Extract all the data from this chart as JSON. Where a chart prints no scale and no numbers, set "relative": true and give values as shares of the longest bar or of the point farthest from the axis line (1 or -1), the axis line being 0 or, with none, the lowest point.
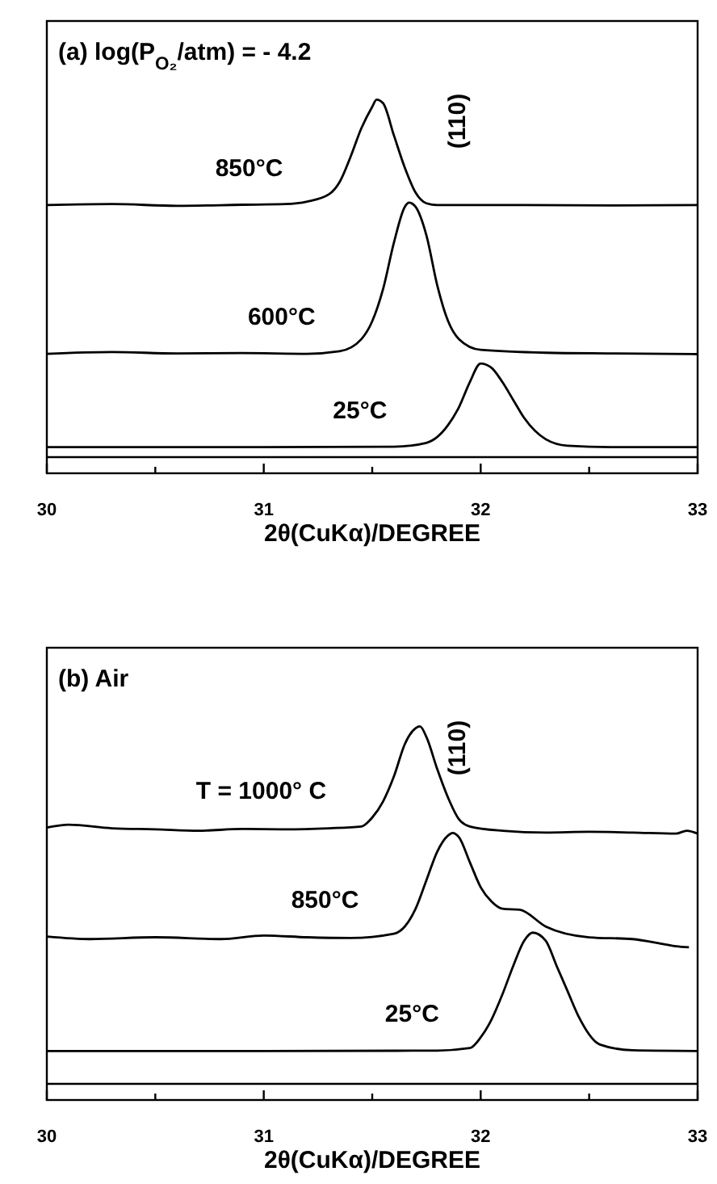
{
  "chart_data": [
    {
      "type": "line",
      "title": "(a) log(P$_{O₂}$/atm) = - 4.2",
      "xlabel": "2θ(CuKα)/DEGREE",
      "relative": true,
      "legend": false,
      "xlim": [
        30,
        33
      ],
      "xticks": [
        30,
        {
          "value": 30.5,
          "label": null
        },
        31,
        {
          "value": 31.5,
          "label": null
        },
        32,
        {
          "value": 32.5,
          "label": null
        },
        33
      ],
      "annotations": [
        "(110)"
      ],
      "series": [
        {
          "name": "850°C",
          "color": "#000000",
          "x": [
            30,
            30.3,
            30.6,
            30.9,
            31.1,
            31.2,
            31.3,
            31.35,
            31.4,
            31.45,
            31.5,
            31.52,
            31.55,
            31.6,
            31.65,
            31.7,
            31.75,
            31.8,
            31.9,
            32.2,
            32.6,
            33
          ],
          "values": [
            0.705,
            0.708,
            0.703,
            0.706,
            0.708,
            0.715,
            0.735,
            0.77,
            0.84,
            0.92,
            0.98,
            1.0,
            0.99,
            0.9,
            0.81,
            0.74,
            0.71,
            0.705,
            0.705,
            0.705,
            0.704,
            0.705
          ]
        },
        {
          "name": "600°C",
          "color": "#000000",
          "x": [
            30,
            30.3,
            30.6,
            30.9,
            31.2,
            31.35,
            31.45,
            31.5,
            31.55,
            31.6,
            31.65,
            31.67,
            31.7,
            31.75,
            31.8,
            31.85,
            31.9,
            32.0,
            32.3,
            32.6,
            33
          ],
          "values": [
            0.289,
            0.294,
            0.29,
            0.291,
            0.289,
            0.296,
            0.33,
            0.38,
            0.47,
            0.6,
            0.7,
            0.712,
            0.7,
            0.62,
            0.48,
            0.38,
            0.33,
            0.3,
            0.292,
            0.29,
            0.288
          ]
        },
        {
          "name": "25°C",
          "color": "#000000",
          "x": [
            30,
            31,
            31.6,
            31.75,
            31.85,
            31.9,
            31.95,
            32.0,
            32.05,
            32.1,
            32.15,
            32.2,
            32.3,
            32.4,
            32.6,
            33
          ],
          "values": [
            0.028,
            0.028,
            0.029,
            0.04,
            0.09,
            0.14,
            0.21,
            0.262,
            0.25,
            0.21,
            0.16,
            0.11,
            0.05,
            0.032,
            0.028,
            0.028
          ]
        }
      ]
    },
    {
      "type": "line",
      "title": "(b) Air",
      "xlabel": "2θ(CuKα)/DEGREE",
      "relative": true,
      "legend": false,
      "xlim": [
        30,
        33
      ],
      "xticks": [
        30,
        {
          "value": 30.5,
          "label": null
        },
        31,
        {
          "value": 31.5,
          "label": null
        },
        32,
        {
          "value": 32.5,
          "label": null
        },
        33
      ],
      "annotations": [
        "(110)"
      ],
      "series": [
        {
          "name": "T = 1000° C",
          "color": "#000000",
          "x": [
            30,
            30.1,
            30.3,
            30.5,
            30.7,
            30.9,
            31.1,
            31.3,
            31.45,
            31.5,
            31.55,
            31.6,
            31.65,
            31.7,
            31.72,
            31.75,
            31.8,
            31.85,
            31.9,
            31.95,
            32.1,
            32.3,
            32.5,
            32.7,
            32.9,
            32.95,
            33
          ],
          "values": [
            0.717,
            0.725,
            0.715,
            0.712,
            0.708,
            0.713,
            0.712,
            0.715,
            0.72,
            0.745,
            0.79,
            0.86,
            0.95,
            0.995,
            1.0,
            0.97,
            0.88,
            0.8,
            0.74,
            0.72,
            0.708,
            0.703,
            0.705,
            0.703,
            0.7,
            0.708,
            0.7
          ]
        },
        {
          "name": "850°C",
          "color": "#000000",
          "x": [
            30,
            30.2,
            30.5,
            30.8,
            31.0,
            31.2,
            31.4,
            31.6,
            31.65,
            31.7,
            31.75,
            31.8,
            31.85,
            31.87,
            31.9,
            31.95,
            32.0,
            32.05,
            32.1,
            32.18,
            32.3,
            32.5,
            32.7,
            32.85,
            32.9,
            32.96
          ],
          "values": [
            0.412,
            0.405,
            0.41,
            0.405,
            0.415,
            0.41,
            0.408,
            0.42,
            0.44,
            0.49,
            0.57,
            0.65,
            0.695,
            0.702,
            0.69,
            0.62,
            0.55,
            0.51,
            0.49,
            0.487,
            0.44,
            0.41,
            0.405,
            0.39,
            0.385,
            0.382
          ]
        },
        {
          "name": "25°C",
          "color": "#000000",
          "x": [
            30,
            31,
            31.8,
            31.95,
            32.0,
            32.05,
            32.1,
            32.15,
            32.2,
            32.24,
            32.3,
            32.35,
            32.4,
            32.45,
            32.55,
            32.7,
            33
          ],
          "values": [
            0.092,
            0.092,
            0.093,
            0.1,
            0.13,
            0.18,
            0.25,
            0.33,
            0.4,
            0.423,
            0.4,
            0.33,
            0.26,
            0.19,
            0.11,
            0.094,
            0.092
          ]
        }
      ]
    }
  ]
}
